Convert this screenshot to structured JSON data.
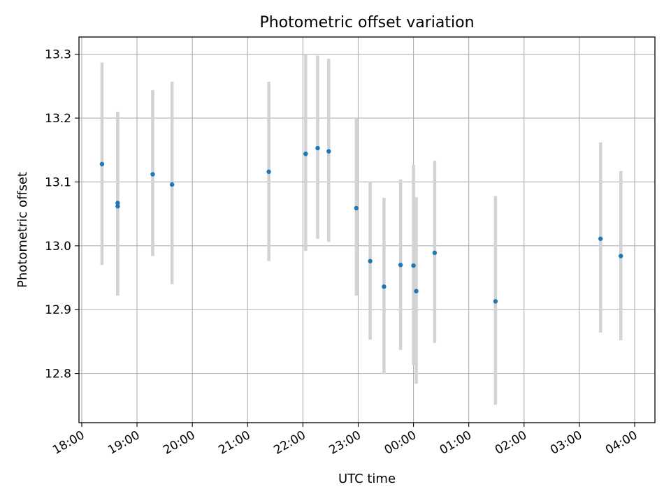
{
  "chart_data": {
    "type": "scatter",
    "title": "Photometric offset variation",
    "xlabel": "UTC time",
    "ylabel": "Photometric offset",
    "x_tick_labels": [
      "18:00",
      "19:00",
      "20:00",
      "21:00",
      "22:00",
      "23:00",
      "00:00",
      "01:00",
      "02:00",
      "03:00",
      "04:00"
    ],
    "y_tick_labels": [
      "12.8",
      "12.9",
      "13.0",
      "13.1",
      "13.2",
      "13.3"
    ],
    "y_ticks": [
      12.8,
      12.9,
      13.0,
      13.1,
      13.2,
      13.3
    ],
    "xlim": [
      "17:57",
      "04:22"
    ],
    "ylim": [
      12.723,
      13.327
    ],
    "grid": true,
    "marker_color": "#1f77b4",
    "errorbar_color": "#d3d3d3",
    "points": [
      {
        "time": "18:22",
        "value": 13.128,
        "lower": 12.97,
        "upper": 13.287
      },
      {
        "time": "18:39",
        "value": 13.062,
        "lower": 12.922,
        "upper": 13.21
      },
      {
        "time": "18:39",
        "value": 13.067,
        "lower": 12.922,
        "upper": 13.21
      },
      {
        "time": "19:17",
        "value": 13.112,
        "lower": 12.984,
        "upper": 13.244
      },
      {
        "time": "19:38",
        "value": 13.096,
        "lower": 12.94,
        "upper": 13.257
      },
      {
        "time": "21:23",
        "value": 13.116,
        "lower": 12.976,
        "upper": 13.257
      },
      {
        "time": "22:03",
        "value": 13.144,
        "lower": 12.992,
        "upper": 13.3
      },
      {
        "time": "22:16",
        "value": 13.153,
        "lower": 13.011,
        "upper": 13.298
      },
      {
        "time": "22:28",
        "value": 13.148,
        "lower": 13.006,
        "upper": 13.293
      },
      {
        "time": "22:58",
        "value": 13.059,
        "lower": 12.922,
        "upper": 13.2
      },
      {
        "time": "23:13",
        "value": 12.976,
        "lower": 12.853,
        "upper": 13.1
      },
      {
        "time": "23:28",
        "value": 12.936,
        "lower": 12.799,
        "upper": 13.075
      },
      {
        "time": "23:46",
        "value": 12.97,
        "lower": 12.837,
        "upper": 13.104
      },
      {
        "time": "00:00",
        "value": 12.969,
        "lower": 12.813,
        "upper": 13.127
      },
      {
        "time": "00:03",
        "value": 12.929,
        "lower": 12.784,
        "upper": 13.076
      },
      {
        "time": "00:23",
        "value": 12.989,
        "lower": 12.848,
        "upper": 13.133
      },
      {
        "time": "01:29",
        "value": 12.913,
        "lower": 12.751,
        "upper": 13.078
      },
      {
        "time": "03:23",
        "value": 13.011,
        "lower": 12.864,
        "upper": 13.162
      },
      {
        "time": "03:45",
        "value": 12.984,
        "lower": 12.852,
        "upper": 13.117
      }
    ]
  }
}
